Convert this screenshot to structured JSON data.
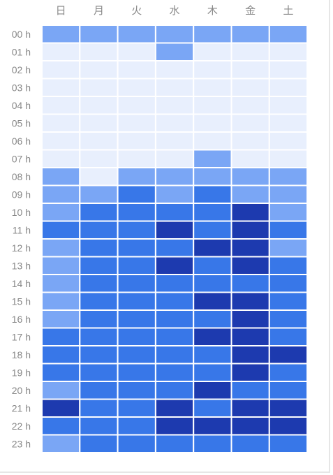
{
  "chart_data": {
    "type": "heatmap",
    "title": "",
    "columns": [
      "日",
      "月",
      "火",
      "水",
      "木",
      "金",
      "土"
    ],
    "rows": [
      "00 h",
      "01 h",
      "02 h",
      "03 h",
      "04 h",
      "05 h",
      "06 h",
      "07 h",
      "08 h",
      "09 h",
      "10 h",
      "11 h",
      "12 h",
      "13 h",
      "14 h",
      "15 h",
      "16 h",
      "17 h",
      "18 h",
      "19 h",
      "20 h",
      "21 h",
      "22 h",
      "23 h"
    ],
    "levels": [
      [
        2,
        2,
        2,
        2,
        2,
        2,
        2
      ],
      [
        1,
        1,
        1,
        2,
        1,
        1,
        1
      ],
      [
        1,
        1,
        1,
        1,
        1,
        1,
        1
      ],
      [
        1,
        1,
        1,
        1,
        1,
        1,
        1
      ],
      [
        1,
        1,
        1,
        1,
        1,
        1,
        1
      ],
      [
        1,
        1,
        1,
        1,
        1,
        1,
        1
      ],
      [
        1,
        1,
        1,
        1,
        1,
        1,
        1
      ],
      [
        1,
        1,
        1,
        1,
        2,
        1,
        1
      ],
      [
        2,
        1,
        2,
        2,
        2,
        2,
        2
      ],
      [
        2,
        2,
        3,
        2,
        3,
        2,
        2
      ],
      [
        2,
        3,
        3,
        3,
        3,
        4,
        2
      ],
      [
        3,
        3,
        3,
        4,
        3,
        4,
        3
      ],
      [
        2,
        3,
        3,
        3,
        4,
        4,
        2
      ],
      [
        2,
        3,
        3,
        4,
        3,
        4,
        3
      ],
      [
        2,
        3,
        3,
        3,
        3,
        3,
        3
      ],
      [
        2,
        3,
        3,
        3,
        4,
        4,
        3
      ],
      [
        2,
        3,
        3,
        3,
        3,
        4,
        3
      ],
      [
        3,
        3,
        3,
        3,
        4,
        4,
        3
      ],
      [
        3,
        3,
        3,
        3,
        3,
        4,
        4
      ],
      [
        3,
        3,
        3,
        3,
        3,
        4,
        3
      ],
      [
        2,
        3,
        3,
        3,
        4,
        3,
        3
      ],
      [
        4,
        3,
        3,
        4,
        3,
        4,
        4
      ],
      [
        3,
        3,
        3,
        4,
        4,
        4,
        4
      ],
      [
        2,
        3,
        3,
        3,
        3,
        3,
        3
      ]
    ],
    "color_scale": {
      "1": "#e8effd",
      "2": "#7aa6f5",
      "3": "#3877e8",
      "4": "#1d3aaf"
    },
    "gap_color": "#ffffff",
    "label_color": "#888888"
  }
}
